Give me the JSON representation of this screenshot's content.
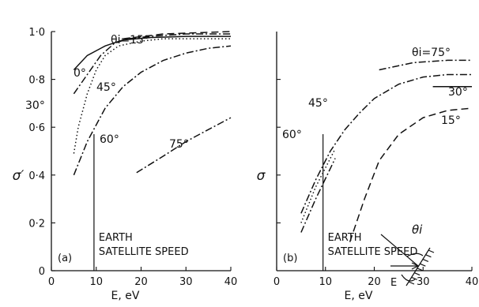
{
  "chart_data": [
    {
      "panel": "a",
      "type": "line",
      "panel_label": "(a)",
      "xlabel": "E, eV",
      "ylabel": "σ′",
      "xlim": [
        0,
        40
      ],
      "ylim": [
        0,
        1.0
      ],
      "xticks": [
        "0",
        "10",
        "20",
        "30",
        "40"
      ],
      "yticks": [
        "0",
        "0·2",
        "0·4",
        "0·6",
        "0·8",
        "1·0"
      ],
      "annotation": [
        "EARTH",
        "SATELLITE SPEED"
      ],
      "annotation_x": 9.5,
      "series": [
        {
          "name": "0°",
          "dash": "solid",
          "x": [
            5,
            8,
            12,
            16,
            22,
            30,
            40
          ],
          "y": [
            0.84,
            0.9,
            0.94,
            0.965,
            0.975,
            0.98,
            0.98
          ]
        },
        {
          "name": "θi=15°",
          "dash": "dash",
          "x": [
            16,
            25,
            40
          ],
          "y": [
            0.97,
            0.99,
            1.0
          ]
        },
        {
          "name": "30°",
          "dash": "dashdot",
          "x": [
            5,
            8,
            11,
            14,
            17,
            22,
            30,
            40
          ],
          "y": [
            0.74,
            0.82,
            0.9,
            0.95,
            0.97,
            0.98,
            0.99,
            0.99
          ]
        },
        {
          "name": "45°",
          "dash": "dot",
          "x": [
            5,
            6,
            8,
            10,
            12,
            15,
            20,
            25,
            30,
            40
          ],
          "y": [
            0.49,
            0.6,
            0.74,
            0.84,
            0.9,
            0.94,
            0.96,
            0.97,
            0.97,
            0.97
          ]
        },
        {
          "name": "60°",
          "dash": "dashdot",
          "x": [
            5,
            8,
            12,
            16,
            20,
            25,
            30,
            35,
            40
          ],
          "y": [
            0.4,
            0.54,
            0.68,
            0.77,
            0.83,
            0.88,
            0.91,
            0.93,
            0.94
          ]
        },
        {
          "name": "75°",
          "dash": "dashdot",
          "x": [
            19,
            25,
            30,
            35,
            40
          ],
          "y": [
            0.41,
            0.48,
            0.54,
            0.59,
            0.64
          ]
        }
      ]
    },
    {
      "panel": "b",
      "type": "line",
      "panel_label": "(b)",
      "xlabel": "E, eV",
      "ylabel": "σ",
      "xlim": [
        0,
        40
      ],
      "xticks": [
        "0",
        "10",
        "20",
        "30",
        "40"
      ],
      "y_ticks_unlabeled": [
        0.2,
        0.4,
        0.6,
        0.8
      ],
      "annotation": [
        "EARTH",
        "SATELLITE SPEED"
      ],
      "annotation_x": 9.5,
      "inset": {
        "angle_label": "θi",
        "field_label": "E"
      },
      "series": [
        {
          "name": "θi=75°",
          "dash": "dashdot",
          "x": [
            21,
            28,
            35,
            40
          ],
          "y": [
            0.84,
            0.87,
            0.88,
            0.88
          ]
        },
        {
          "name": "30°",
          "dash": "dashdot",
          "x": [
            5,
            8,
            11,
            14,
            17,
            20,
            25,
            30,
            35,
            40
          ],
          "y": [
            0.24,
            0.38,
            0.5,
            0.59,
            0.66,
            0.72,
            0.78,
            0.81,
            0.82,
            0.82
          ]
        },
        {
          "name": "45°",
          "dash": "dot",
          "x": [
            5,
            8,
            12
          ],
          "y": [
            0.2,
            0.35,
            0.51
          ]
        },
        {
          "name": "60°",
          "dash": "dashdot",
          "x": [
            5,
            8,
            12
          ],
          "y": [
            0.16,
            0.3,
            0.47
          ]
        },
        {
          "name": "15°",
          "dash": "dash",
          "x": [
            15,
            18,
            21,
            25,
            30,
            35,
            40
          ],
          "y": [
            0.12,
            0.3,
            0.46,
            0.57,
            0.64,
            0.67,
            0.68
          ]
        },
        {
          "name": "",
          "dash": "solid",
          "x": [
            32,
            40
          ],
          "y": [
            0.77,
            0.77
          ]
        }
      ]
    }
  ]
}
